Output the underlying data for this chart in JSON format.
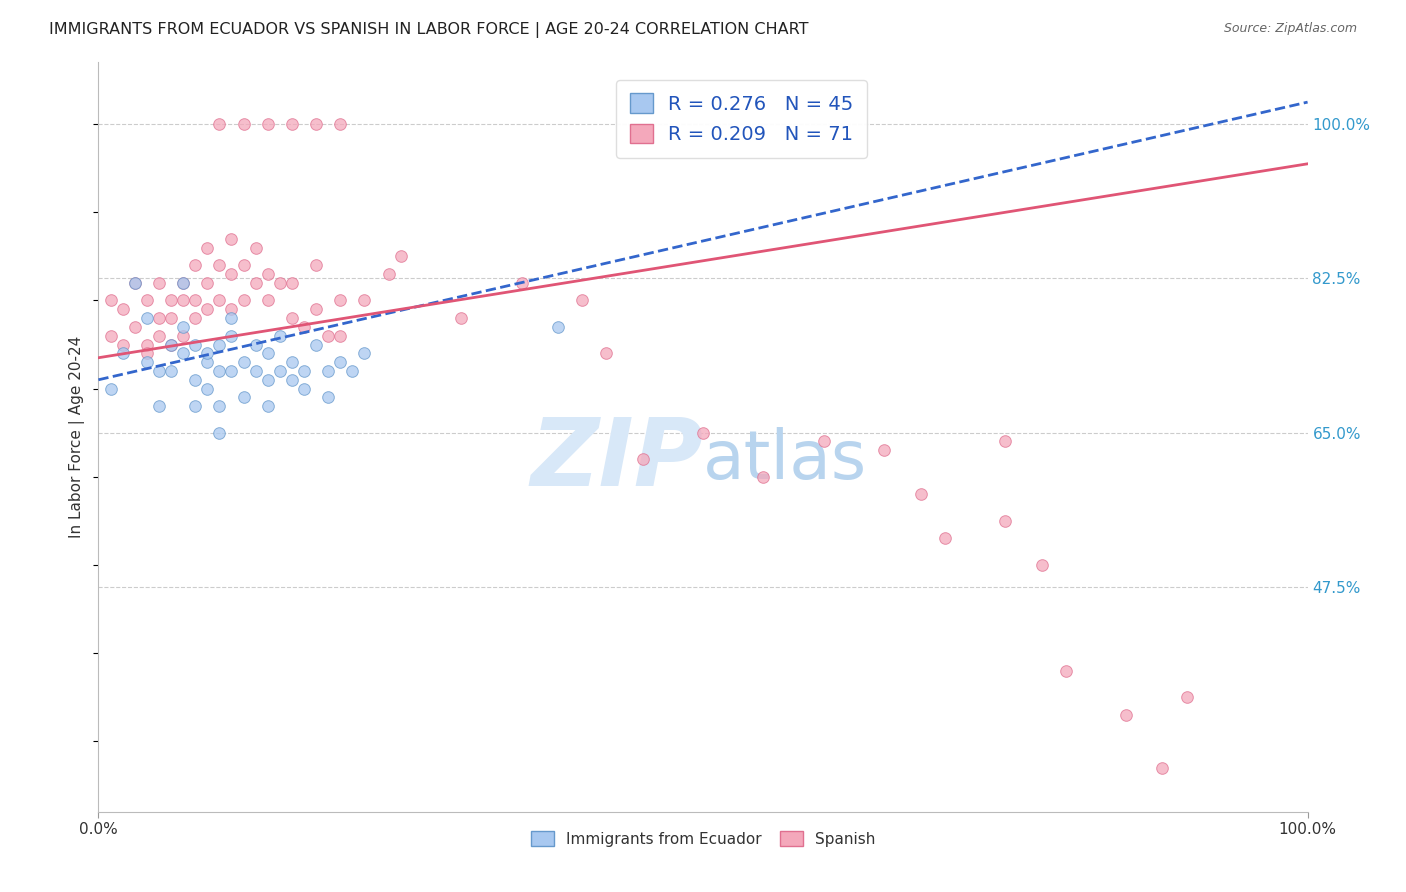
{
  "title": "IMMIGRANTS FROM ECUADOR VS SPANISH IN LABOR FORCE | AGE 20-24 CORRELATION CHART",
  "source": "Source: ZipAtlas.com",
  "ylabel": "In Labor Force | Age 20-24",
  "y_tick_values": [
    0.475,
    0.65,
    0.825,
    1.0
  ],
  "xlim": [
    0.0,
    1.0
  ],
  "ylim": [
    0.22,
    1.07
  ],
  "legend_labels": [
    "Immigrants from Ecuador",
    "Spanish"
  ],
  "blue_R": 0.276,
  "blue_N": 45,
  "pink_R": 0.209,
  "pink_N": 71,
  "blue_color": "#a8c8f0",
  "pink_color": "#f4a8bb",
  "blue_edge": "#6699cc",
  "pink_edge": "#e07090",
  "trend_blue": "#3366cc",
  "trend_pink": "#e05575",
  "blue_scatter_x": [
    0.01,
    0.02,
    0.03,
    0.04,
    0.04,
    0.05,
    0.05,
    0.06,
    0.06,
    0.07,
    0.07,
    0.07,
    0.08,
    0.08,
    0.08,
    0.09,
    0.09,
    0.09,
    0.1,
    0.1,
    0.1,
    0.11,
    0.11,
    0.11,
    0.12,
    0.12,
    0.13,
    0.13,
    0.14,
    0.14,
    0.14,
    0.15,
    0.15,
    0.16,
    0.16,
    0.17,
    0.17,
    0.18,
    0.19,
    0.19,
    0.2,
    0.22,
    0.38,
    0.21,
    0.1
  ],
  "blue_scatter_y": [
    0.7,
    0.74,
    0.82,
    0.73,
    0.78,
    0.72,
    0.68,
    0.72,
    0.75,
    0.74,
    0.77,
    0.82,
    0.71,
    0.75,
    0.68,
    0.73,
    0.7,
    0.74,
    0.72,
    0.75,
    0.68,
    0.76,
    0.72,
    0.78,
    0.73,
    0.69,
    0.72,
    0.75,
    0.71,
    0.74,
    0.68,
    0.72,
    0.76,
    0.71,
    0.73,
    0.72,
    0.7,
    0.75,
    0.72,
    0.69,
    0.73,
    0.74,
    0.77,
    0.72,
    0.65
  ],
  "pink_scatter_x": [
    0.01,
    0.01,
    0.02,
    0.02,
    0.03,
    0.03,
    0.04,
    0.04,
    0.04,
    0.05,
    0.05,
    0.05,
    0.06,
    0.06,
    0.06,
    0.07,
    0.07,
    0.07,
    0.08,
    0.08,
    0.08,
    0.09,
    0.09,
    0.09,
    0.1,
    0.1,
    0.11,
    0.11,
    0.11,
    0.12,
    0.12,
    0.13,
    0.13,
    0.14,
    0.14,
    0.15,
    0.16,
    0.16,
    0.17,
    0.18,
    0.18,
    0.19,
    0.2,
    0.2,
    0.22,
    0.24,
    0.1,
    0.12,
    0.14,
    0.16,
    0.18,
    0.2,
    0.25,
    0.3,
    0.35,
    0.4,
    0.42,
    0.45,
    0.5,
    0.55,
    0.6,
    0.65,
    0.68,
    0.7,
    0.75,
    0.75,
    0.78,
    0.8,
    0.85,
    0.88,
    0.9
  ],
  "pink_scatter_y": [
    0.76,
    0.8,
    0.75,
    0.79,
    0.77,
    0.82,
    0.75,
    0.8,
    0.74,
    0.78,
    0.82,
    0.76,
    0.78,
    0.8,
    0.75,
    0.8,
    0.76,
    0.82,
    0.78,
    0.8,
    0.84,
    0.79,
    0.82,
    0.86,
    0.8,
    0.84,
    0.79,
    0.83,
    0.87,
    0.8,
    0.84,
    0.82,
    0.86,
    0.8,
    0.83,
    0.82,
    0.78,
    0.82,
    0.77,
    0.79,
    0.84,
    0.76,
    0.8,
    0.76,
    0.8,
    0.83,
    1.0,
    1.0,
    1.0,
    1.0,
    1.0,
    1.0,
    0.85,
    0.78,
    0.82,
    0.8,
    0.74,
    0.62,
    0.65,
    0.6,
    0.64,
    0.63,
    0.58,
    0.53,
    0.55,
    0.64,
    0.5,
    0.38,
    0.33,
    0.27,
    0.35
  ],
  "background_color": "#ffffff",
  "grid_color": "#cccccc",
  "title_fontsize": 11.5,
  "axis_label_fontsize": 11,
  "tick_fontsize": 11,
  "legend_fontsize": 14,
  "marker_size": 70,
  "marker_alpha": 0.75,
  "watermark_zip": "ZIP",
  "watermark_atlas": "atlas",
  "watermark_color_zip": "#d8e8f8",
  "watermark_color_atlas": "#b8d4ee",
  "watermark_fontsize": 68,
  "blue_trend_x0": 0.0,
  "blue_trend_y0": 0.71,
  "blue_trend_x1": 1.0,
  "blue_trend_y1": 1.025,
  "pink_trend_x0": 0.0,
  "pink_trend_y0": 0.735,
  "pink_trend_x1": 1.0,
  "pink_trend_y1": 0.955
}
